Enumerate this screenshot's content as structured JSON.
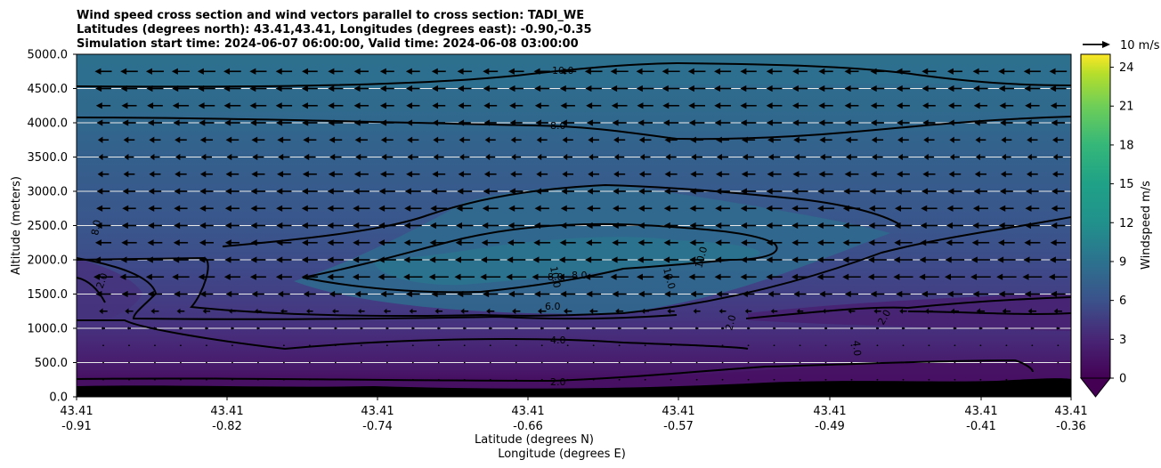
{
  "chart_data": {
    "type": "contourf",
    "title_lines": [
      "Wind speed cross section and wind vectors parallel to cross section: TADI_WE",
      "Latitudes (degrees north): 43.41,43.41, Longitudes (degrees east): -0.90,-0.35",
      "Simulation start time: 2024-06-07 06:00:00, Valid time: 2024-06-08 03:00:00"
    ],
    "ylabel": "Altitude (meters)",
    "xlabel_lat": "Latitude (degrees N)",
    "xlabel_lon": "Longitude (degrees E)",
    "ylim": [
      0,
      5000
    ],
    "y_ticks": [
      "0.0",
      "500.0",
      "1000.0",
      "1500.0",
      "2000.0",
      "2500.0",
      "3000.0",
      "3500.0",
      "4000.0",
      "4500.0",
      "5000.0"
    ],
    "x_ticks": [
      {
        "lat": "43.41",
        "lon": "-0.91"
      },
      {
        "lat": "43.41",
        "lon": "-0.82"
      },
      {
        "lat": "43.41",
        "lon": "-0.74"
      },
      {
        "lat": "43.41",
        "lon": "-0.66"
      },
      {
        "lat": "43.41",
        "lon": "-0.57"
      },
      {
        "lat": "43.41",
        "lon": "-0.49"
      },
      {
        "lat": "43.41",
        "lon": "-0.41"
      },
      {
        "lat": "43.41",
        "lon": "-0.36"
      }
    ],
    "colorbar": {
      "label": "Windspeed m/s",
      "min": 0,
      "max": 25,
      "ticks": [
        "0",
        "3",
        "6",
        "9",
        "12",
        "15",
        "18",
        "21",
        "24"
      ],
      "extend": "min"
    },
    "contour_levels": [
      2.0,
      4.0,
      6.0,
      8.0,
      10.0
    ],
    "contour_labels": [
      "10.0",
      "8.0",
      "6.0",
      "4.0",
      "2.0",
      "2.0",
      "2.0",
      "2.0",
      "8.0",
      "8.0",
      "8.0",
      "10.0",
      "10.0",
      "10.0",
      "4.0"
    ],
    "quiver_key": {
      "label": "10 m/s",
      "speed": 10
    },
    "vector_rows": [
      {
        "altitude": 4750,
        "u": -7.5
      },
      {
        "altitude": 4500,
        "u": -7.3
      },
      {
        "altitude": 4250,
        "u": -7.0
      },
      {
        "altitude": 4000,
        "u": -6.6
      },
      {
        "altitude": 3750,
        "u": -5.6
      },
      {
        "altitude": 3500,
        "u": -5.0
      },
      {
        "altitude": 3250,
        "u": -6.0
      },
      {
        "altitude": 3000,
        "u": -6.8
      },
      {
        "altitude": 2750,
        "u": -7.2
      },
      {
        "altitude": 2500,
        "u": -7.4
      },
      {
        "altitude": 2250,
        "u": -7.6
      },
      {
        "altitude": 2000,
        "u": -8.0
      },
      {
        "altitude": 1750,
        "u": -8.5
      },
      {
        "altitude": 1500,
        "u": -6.5
      },
      {
        "altitude": 1250,
        "u": -3.5
      },
      {
        "altitude": 1000,
        "u": -1.5
      },
      {
        "altitude": 750,
        "u": -0.3
      },
      {
        "altitude": 500,
        "u": -0.2
      },
      {
        "altitude": 250,
        "u": -0.1
      }
    ],
    "terrain": "black"
  }
}
